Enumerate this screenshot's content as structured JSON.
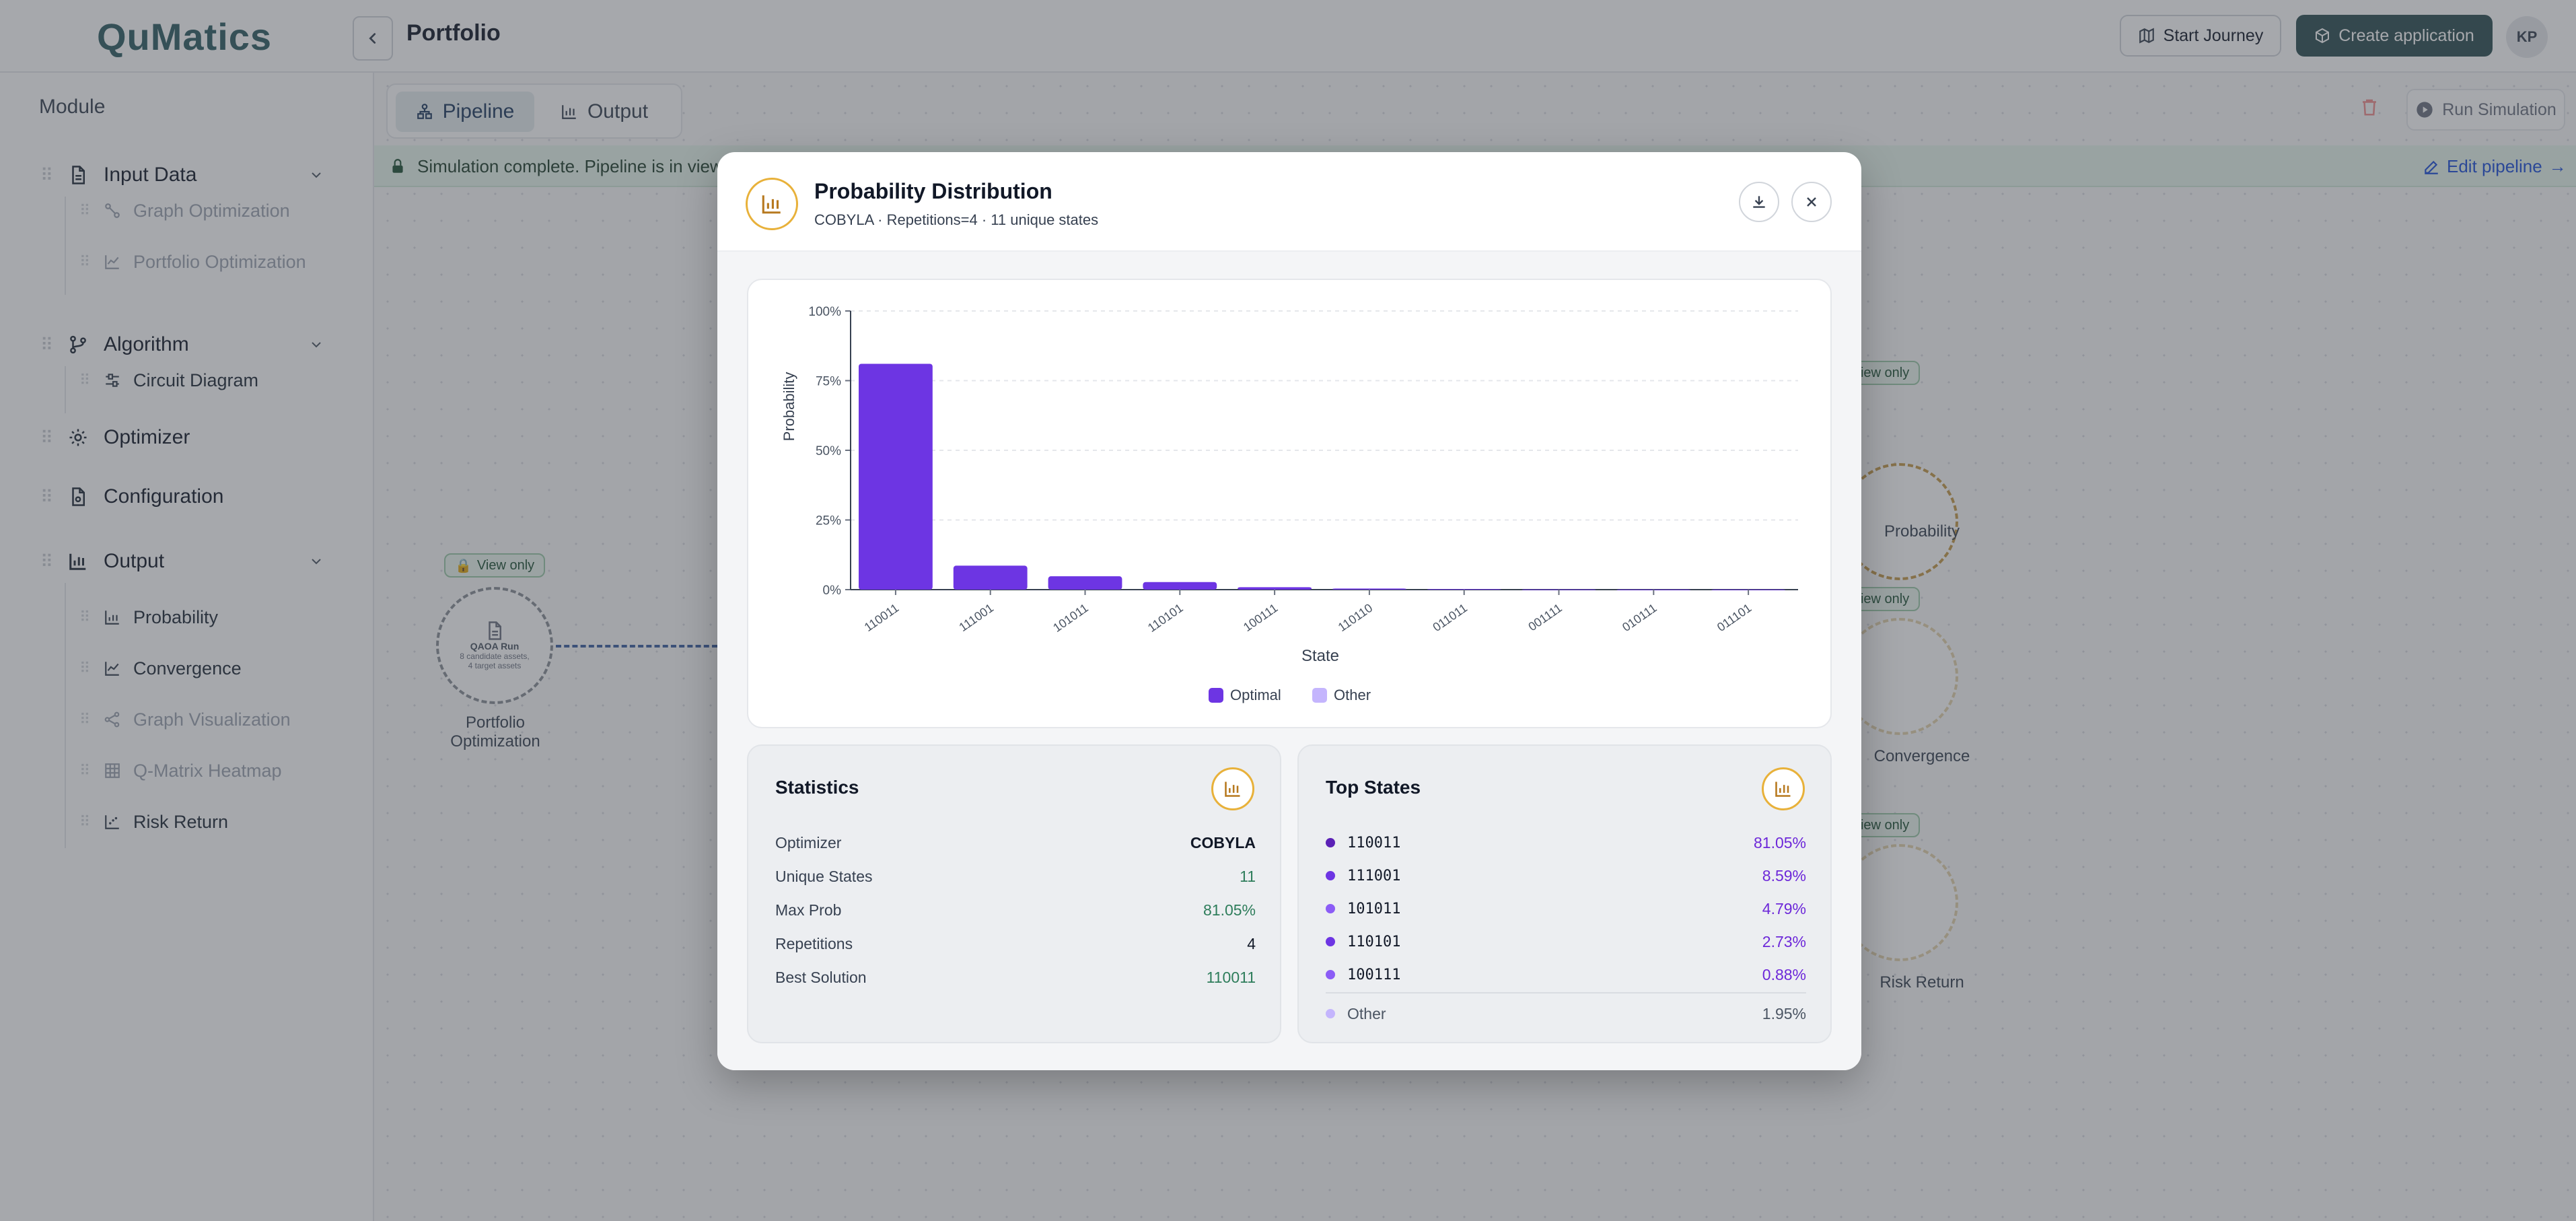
{
  "app": {
    "logo": "QuMatics",
    "page_title": "Portfolio"
  },
  "header": {
    "start_journey": "Start Journey",
    "create_application": "Create application",
    "avatar": "KP"
  },
  "sidebar": {
    "heading": "Module",
    "groups": [
      {
        "label": "Input Data",
        "items": [
          {
            "label": "Graph Optimization",
            "state": "disabled"
          },
          {
            "label": "Portfolio Optimization",
            "state": "disabled"
          }
        ]
      },
      {
        "label": "Algorithm",
        "items": [
          {
            "label": "Circuit Diagram",
            "state": "active"
          }
        ]
      },
      {
        "label": "Optimizer",
        "items": []
      },
      {
        "label": "Configuration",
        "items": []
      },
      {
        "label": "Output",
        "items": [
          {
            "label": "Probability",
            "state": "active"
          },
          {
            "label": "Convergence",
            "state": "active"
          },
          {
            "label": "Graph Visualization",
            "state": "disabled"
          },
          {
            "label": "Q-Matrix Heatmap",
            "state": "disabled"
          },
          {
            "label": "Risk Return",
            "state": "active"
          }
        ]
      }
    ]
  },
  "toolbar": {
    "tab_pipeline": "Pipeline",
    "tab_output": "Output",
    "run_simulation": "Run Simulation"
  },
  "banner": {
    "text": "Simulation complete. Pipeline is in view-only mode.",
    "edit_link": "Edit pipeline"
  },
  "canvas": {
    "badge": "View only",
    "node_left": {
      "title": "QAOA Run",
      "line1": "8 candidate assets,",
      "line2": "4 target assets",
      "label": "Portfolio Optimization"
    },
    "node_labels": {
      "probability": "Probability",
      "convergence": "Convergence",
      "risk_return": "Risk Return"
    }
  },
  "modal": {
    "title": "Probability Distribution",
    "subtitle": "COBYLA · Repetitions=4 · 11 unique states",
    "statistics": {
      "title": "Statistics",
      "rows": [
        {
          "label": "Optimizer",
          "value": "COBYLA"
        },
        {
          "label": "Unique States",
          "value": "11"
        },
        {
          "label": "Max Prob",
          "value": "81.05%"
        },
        {
          "label": "Repetitions",
          "value": "4"
        },
        {
          "label": "Best Solution",
          "value": "110011"
        }
      ]
    },
    "top_states": {
      "title": "Top States",
      "rows": [
        {
          "state": "110011",
          "pct": "81.05%"
        },
        {
          "state": "111001",
          "pct": "8.59%"
        },
        {
          "state": "101011",
          "pct": "4.79%"
        },
        {
          "state": "110101",
          "pct": "2.73%"
        },
        {
          "state": "100111",
          "pct": "0.88%"
        }
      ],
      "other": {
        "label": "Other",
        "pct": "1.95%"
      }
    }
  },
  "colors": {
    "optimal": "#6d35e3",
    "other": "#c4b5fd",
    "accent": "#2d4f52",
    "icon_ring": "#e8b13a"
  },
  "chart_data": {
    "type": "bar",
    "xlabel": "State",
    "ylabel": "Probability",
    "ylim": [
      0,
      100
    ],
    "yticks": [
      "0%",
      "25%",
      "50%",
      "75%",
      "100%"
    ],
    "categories": [
      "110011",
      "111001",
      "101011",
      "110101",
      "100111",
      "110110",
      "011011",
      "001111",
      "010111",
      "011101"
    ],
    "series": [
      {
        "name": "Optimal",
        "values": [
          81.05,
          8.59,
          4.79,
          2.73,
          0.88,
          0.4,
          0.2,
          0.1,
          0.05,
          0.05
        ]
      }
    ],
    "legend": [
      "Optimal",
      "Other"
    ],
    "legend_position": "bottom-center",
    "grid": true
  }
}
